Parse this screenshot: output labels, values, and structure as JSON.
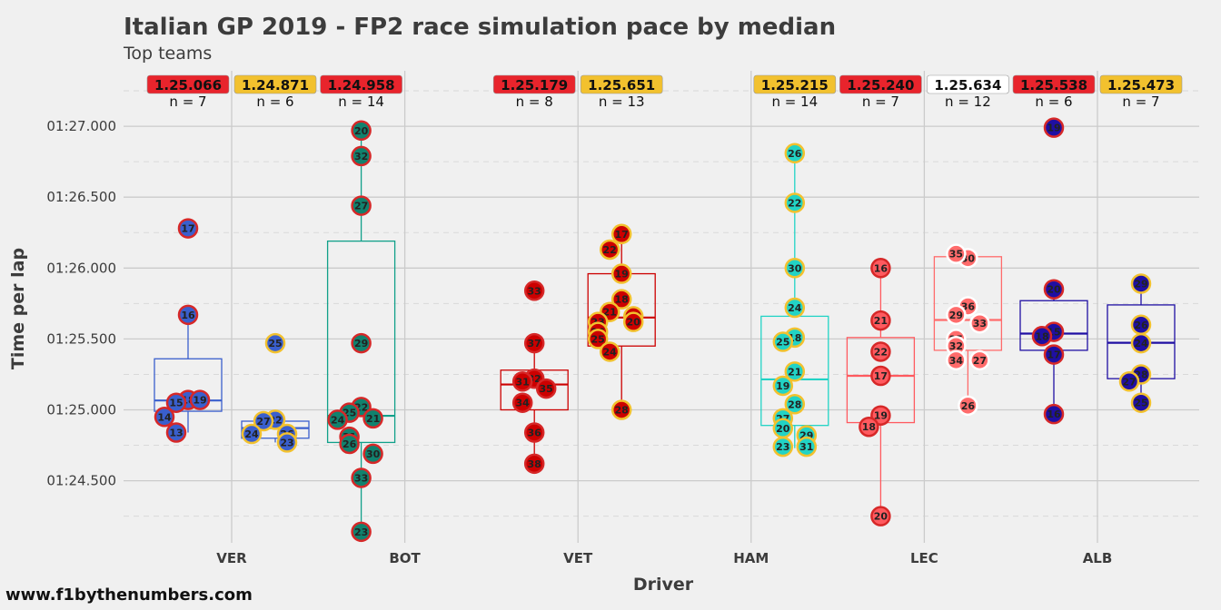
{
  "chart_data": {
    "type": "box+scatter",
    "title": "Italian GP 2019 - FP2 race simulation pace by median",
    "subtitle": "Top teams",
    "xlabel": "Driver",
    "ylabel": "Time per lap",
    "footer": "www.f1bythenumbers.com",
    "ylim": [
      84.1,
      87.4
    ],
    "yticks": [
      {
        "value": 84.5,
        "label": "01:24.500"
      },
      {
        "value": 85.0,
        "label": "01:25.000"
      },
      {
        "value": 85.5,
        "label": "01:25.500"
      },
      {
        "value": 86.0,
        "label": "01:26.000"
      },
      {
        "value": 86.5,
        "label": "01:26.500"
      },
      {
        "value": 87.0,
        "label": "01:27.000"
      }
    ],
    "drivers": [
      "VER",
      "BOT",
      "VET",
      "HAM",
      "LEC",
      "ALB"
    ],
    "groups": [
      {
        "driver": "VER",
        "side": "left",
        "color": "#3a5fcd",
        "border": "#d62828",
        "box_color": "#3a5fcd",
        "median_label": "1.25.066",
        "label_bg": "#e8242c",
        "n_label": "n = 7",
        "box": {
          "q1": 84.99,
          "median": 85.066,
          "q3": 85.36,
          "lo": 84.84,
          "hi": 85.67
        },
        "points": [
          {
            "lap": 17,
            "t": 86.28
          },
          {
            "lap": 16,
            "t": 85.67
          },
          {
            "lap": 18,
            "t": 85.07
          },
          {
            "lap": 15,
            "t": 85.05
          },
          {
            "lap": 19,
            "t": 85.07
          },
          {
            "lap": 14,
            "t": 84.95
          },
          {
            "lap": 13,
            "t": 84.84
          }
        ]
      },
      {
        "driver": "VER",
        "side": "right",
        "color": "#3a5fcd",
        "border": "#f2c12e",
        "box_color": "#3a5fcd",
        "median_label": "1.24.871",
        "label_bg": "#f2c12e",
        "n_label": "n = 6",
        "box": {
          "q1": 84.8,
          "median": 84.871,
          "q3": 84.92,
          "lo": 84.77,
          "hi": 84.93
        },
        "points": [
          {
            "lap": 25,
            "t": 85.47
          },
          {
            "lap": 22,
            "t": 84.93
          },
          {
            "lap": 27,
            "t": 84.92
          },
          {
            "lap": 26,
            "t": 84.83
          },
          {
            "lap": 24,
            "t": 84.83
          },
          {
            "lap": 23,
            "t": 84.77
          }
        ]
      },
      {
        "driver": "BOT",
        "side": "left",
        "color": "#11826e",
        "border": "#d62828",
        "box_color": "#11a08a",
        "median_label": "1.24.958",
        "label_bg": "#e8242c",
        "n_label": "n = 14",
        "box": {
          "q1": 84.77,
          "median": 84.958,
          "q3": 86.19,
          "lo": 84.14,
          "hi": 86.97
        },
        "points": [
          {
            "lap": 20,
            "t": 86.97
          },
          {
            "lap": 32,
            "t": 86.79
          },
          {
            "lap": 27,
            "t": 86.44
          },
          {
            "lap": 29,
            "t": 85.47
          },
          {
            "lap": 22,
            "t": 85.02
          },
          {
            "lap": 25,
            "t": 84.98
          },
          {
            "lap": 21,
            "t": 84.94
          },
          {
            "lap": 24,
            "t": 84.93
          },
          {
            "lap": 31,
            "t": 84.81
          },
          {
            "lap": 26,
            "t": 84.76
          },
          {
            "lap": 30,
            "t": 84.69
          },
          {
            "lap": 33,
            "t": 84.52
          },
          {
            "lap": 23,
            "t": 84.14
          }
        ]
      },
      {
        "driver": "VET",
        "side": "left",
        "color": "#cc0000",
        "border": "#d62828",
        "box_color": "#cc0000",
        "median_label": "1.25.179",
        "label_bg": "#e8242c",
        "n_label": "n = 8",
        "box": {
          "q1": 85.0,
          "median": 85.179,
          "q3": 85.28,
          "lo": 84.62,
          "hi": 85.47
        },
        "points": [
          {
            "lap": 33,
            "t": 85.84
          },
          {
            "lap": 37,
            "t": 85.47
          },
          {
            "lap": 32,
            "t": 85.22
          },
          {
            "lap": 31,
            "t": 85.2
          },
          {
            "lap": 35,
            "t": 85.15
          },
          {
            "lap": 34,
            "t": 85.05
          },
          {
            "lap": 36,
            "t": 84.84
          },
          {
            "lap": 38,
            "t": 84.62
          }
        ]
      },
      {
        "driver": "VET",
        "side": "right",
        "color": "#cc0000",
        "border": "#f2c12e",
        "box_color": "#cc0000",
        "median_label": "1.25.651",
        "label_bg": "#f2c12e",
        "n_label": "n = 13",
        "box": {
          "q1": 85.45,
          "median": 85.651,
          "q3": 85.96,
          "lo": 85.0,
          "hi": 86.24
        },
        "points": [
          {
            "lap": 17,
            "t": 86.24
          },
          {
            "lap": 22,
            "t": 86.13
          },
          {
            "lap": 19,
            "t": 85.96
          },
          {
            "lap": 18,
            "t": 85.78
          },
          {
            "lap": 21,
            "t": 85.69
          },
          {
            "lap": 27,
            "t": 85.66
          },
          {
            "lap": 20,
            "t": 85.62
          },
          {
            "lap": 23,
            "t": 85.62
          },
          {
            "lap": 26,
            "t": 85.55
          },
          {
            "lap": 25,
            "t": 85.5
          },
          {
            "lap": 24,
            "t": 85.41
          },
          {
            "lap": 28,
            "t": 85.0
          }
        ]
      },
      {
        "driver": "HAM",
        "side": "right",
        "color": "#22d3c5",
        "border": "#f2c12e",
        "box_color": "#22d3c5",
        "median_label": "1.25.215",
        "label_bg": "#f2c12e",
        "n_label": "n = 14",
        "box": {
          "q1": 84.89,
          "median": 85.215,
          "q3": 85.66,
          "lo": 84.73,
          "hi": 86.81
        },
        "points": [
          {
            "lap": 26,
            "t": 86.81
          },
          {
            "lap": 22,
            "t": 86.46
          },
          {
            "lap": 30,
            "t": 86.0
          },
          {
            "lap": 24,
            "t": 85.72
          },
          {
            "lap": 18,
            "t": 85.51
          },
          {
            "lap": 25,
            "t": 85.48
          },
          {
            "lap": 21,
            "t": 85.27
          },
          {
            "lap": 19,
            "t": 85.17
          },
          {
            "lap": 28,
            "t": 85.04
          },
          {
            "lap": 27,
            "t": 84.94
          },
          {
            "lap": 20,
            "t": 84.87
          },
          {
            "lap": 29,
            "t": 84.82
          },
          {
            "lap": 23,
            "t": 84.74
          },
          {
            "lap": 31,
            "t": 84.74
          }
        ]
      },
      {
        "driver": "LEC",
        "side": "left",
        "color": "#ff5a5f",
        "border": "#d62828",
        "box_color": "#ff5a5f",
        "median_label": "1.25.240",
        "label_bg": "#e8242c",
        "n_label": "n = 7",
        "box": {
          "q1": 84.91,
          "median": 85.24,
          "q3": 85.51,
          "lo": 84.25,
          "hi": 86.0
        },
        "points": [
          {
            "lap": 16,
            "t": 86.0
          },
          {
            "lap": 21,
            "t": 85.63
          },
          {
            "lap": 22,
            "t": 85.41
          },
          {
            "lap": 17,
            "t": 85.24
          },
          {
            "lap": 19,
            "t": 84.96
          },
          {
            "lap": 18,
            "t": 84.88
          },
          {
            "lap": 20,
            "t": 84.25
          }
        ]
      },
      {
        "driver": "LEC",
        "side": "right",
        "color": "#ff6b6b",
        "border": "#ffffff",
        "box_color": "#ff6b6b",
        "median_label": "1.25.634",
        "label_bg": "#ffffff",
        "n_label": "n = 12",
        "box": {
          "q1": 85.42,
          "median": 85.634,
          "q3": 86.08,
          "lo": 85.03,
          "hi": 86.1
        },
        "points": [
          {
            "lap": 30,
            "t": 86.07
          },
          {
            "lap": 35,
            "t": 86.1
          },
          {
            "lap": 36,
            "t": 85.73
          },
          {
            "lap": 29,
            "t": 85.67
          },
          {
            "lap": 33,
            "t": 85.61
          },
          {
            "lap": 25,
            "t": 85.5
          },
          {
            "lap": 32,
            "t": 85.45
          },
          {
            "lap": 34,
            "t": 85.35
          },
          {
            "lap": 27,
            "t": 85.35
          },
          {
            "lap": 26,
            "t": 85.03
          }
        ]
      },
      {
        "driver": "ALB",
        "side": "left",
        "color": "#1f0fa3",
        "border": "#d62828",
        "box_color": "#1f0fa3",
        "median_label": "1.25.538",
        "label_bg": "#e8242c",
        "n_label": "n = 6",
        "box": {
          "q1": 85.42,
          "median": 85.538,
          "q3": 85.77,
          "lo": 84.97,
          "hi": 85.85
        },
        "points": [
          {
            "lap": 19,
            "t": 86.99
          },
          {
            "lap": 20,
            "t": 85.85
          },
          {
            "lap": 15,
            "t": 85.55
          },
          {
            "lap": 18,
            "t": 85.52
          },
          {
            "lap": 17,
            "t": 85.39
          },
          {
            "lap": 16,
            "t": 84.97
          }
        ]
      },
      {
        "driver": "ALB",
        "side": "right",
        "color": "#1f0fa3",
        "border": "#f2c12e",
        "box_color": "#1f0fa3",
        "median_label": "1.25.473",
        "label_bg": "#f2c12e",
        "n_label": "n = 7",
        "box": {
          "q1": 85.22,
          "median": 85.473,
          "q3": 85.74,
          "lo": 85.05,
          "hi": 85.89
        },
        "points": [
          {
            "lap": 29,
            "t": 85.89
          },
          {
            "lap": 26,
            "t": 85.6
          },
          {
            "lap": 24,
            "t": 85.47
          },
          {
            "lap": 28,
            "t": 85.25
          },
          {
            "lap": 27,
            "t": 85.2
          },
          {
            "lap": 25,
            "t": 85.05
          }
        ]
      }
    ]
  }
}
